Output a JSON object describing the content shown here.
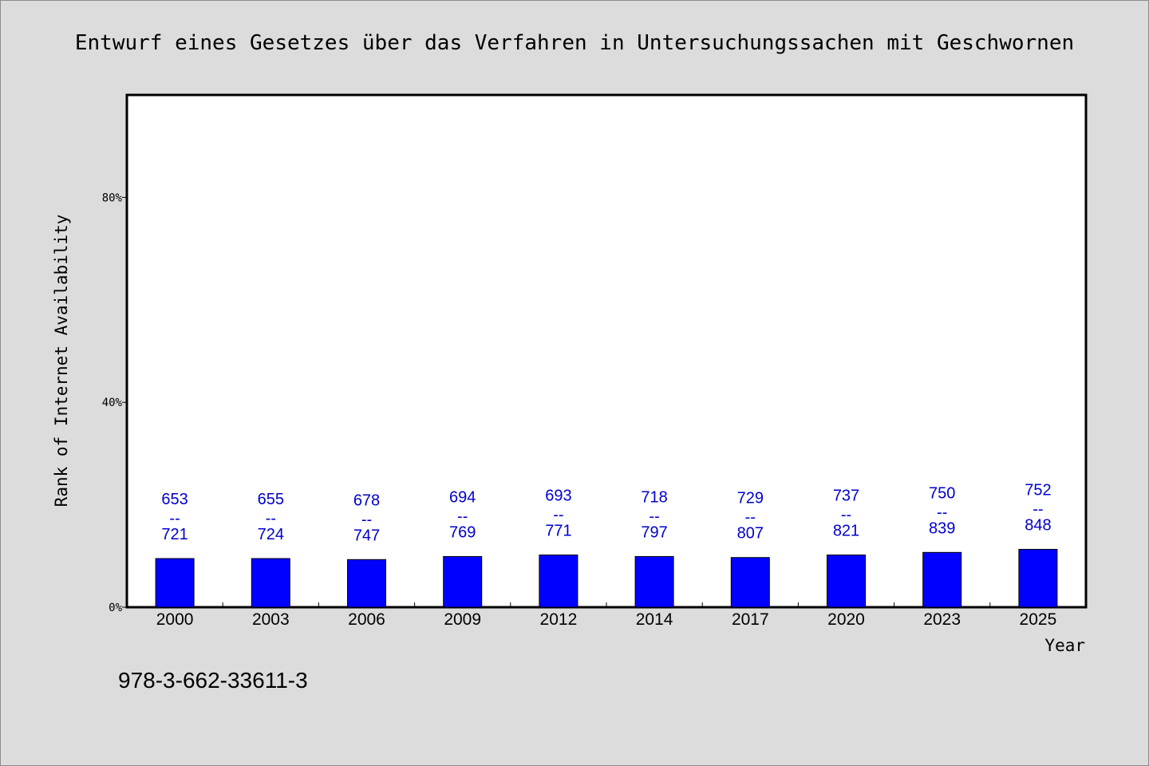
{
  "chart_data": {
    "type": "bar",
    "title": "Entwurf eines Gesetzes über das Verfahren in Untersuchungssachen mit Geschwornen",
    "xlabel": "Year",
    "ylabel": "Rank of Internet Availability",
    "categories": [
      "2000",
      "2003",
      "2006",
      "2009",
      "2012",
      "2014",
      "2017",
      "2020",
      "2023",
      "2025"
    ],
    "values": [
      9.5,
      9.5,
      9.3,
      9.9,
      10.2,
      9.9,
      9.7,
      10.2,
      10.7,
      11.3
    ],
    "ylim": [
      0,
      100
    ],
    "yticks": [
      0,
      40,
      80
    ],
    "ytick_labels": [
      "0%",
      "40%",
      "80%"
    ],
    "data_labels": [
      {
        "top": "653",
        "sep": "--",
        "bottom": "721"
      },
      {
        "top": "655",
        "sep": "--",
        "bottom": "724"
      },
      {
        "top": "678",
        "sep": "--",
        "bottom": "747"
      },
      {
        "top": "694",
        "sep": "--",
        "bottom": "769"
      },
      {
        "top": "693",
        "sep": "--",
        "bottom": "771"
      },
      {
        "top": "718",
        "sep": "--",
        "bottom": "797"
      },
      {
        "top": "729",
        "sep": "--",
        "bottom": "807"
      },
      {
        "top": "737",
        "sep": "--",
        "bottom": "821"
      },
      {
        "top": "750",
        "sep": "--",
        "bottom": "839"
      },
      {
        "top": "752",
        "sep": "--",
        "bottom": "848"
      }
    ],
    "bar_color": "#0000ff",
    "label_color": "#0000cc",
    "grid": false,
    "legend": "none"
  },
  "footnote": "978-3-662-33611-3",
  "colors": {
    "background": "#dcdcdc",
    "plot_background": "#ffffff",
    "axis": "#000000"
  }
}
